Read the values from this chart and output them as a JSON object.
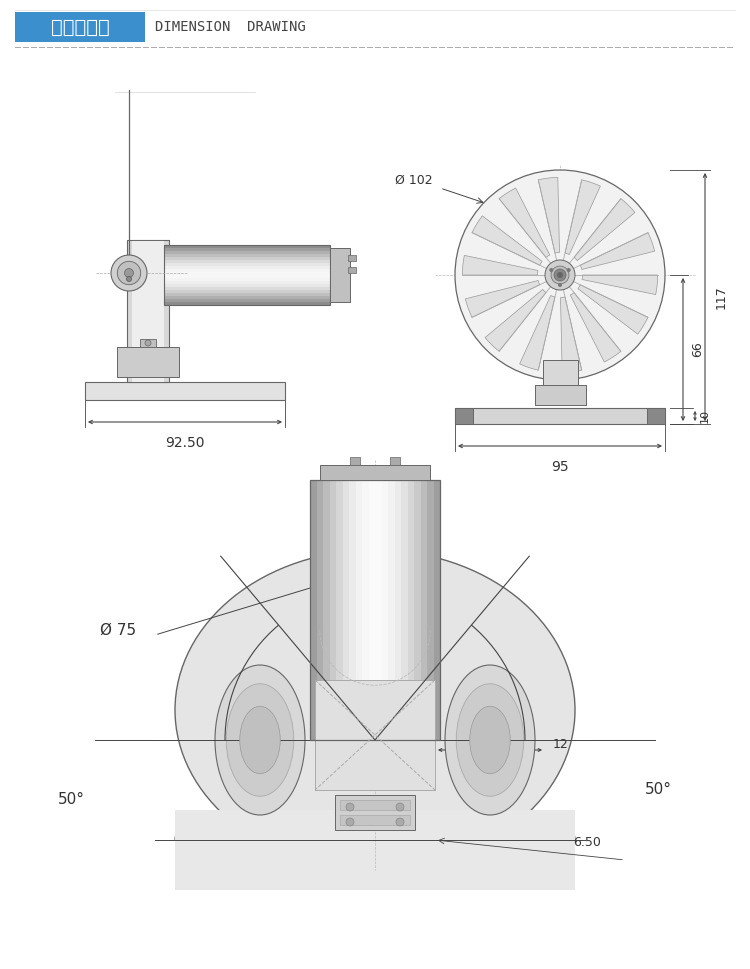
{
  "bg_color": "#ffffff",
  "title_box_color": "#3a8fcc",
  "title_chinese": "外形尺寸图",
  "title_english": "DIMENSION  DRAWING",
  "title_fontsize": 13,
  "dash_line_color": "#aaaaaa",
  "lc": "#666666",
  "dc": "#444444",
  "ac": "#333333",
  "fs": 9,
  "side_view": {
    "dim_width": "92.50"
  },
  "front_view": {
    "dim_diameter": "102",
    "dim_width": "95",
    "dim_h1": "117",
    "dim_h2": "66",
    "dim_h3": "10"
  },
  "top_view": {
    "dim_diameter": "75",
    "dim_angle1": "50°",
    "dim_angle2": "50°",
    "dim_w1": "12",
    "dim_w2": "6.50"
  }
}
